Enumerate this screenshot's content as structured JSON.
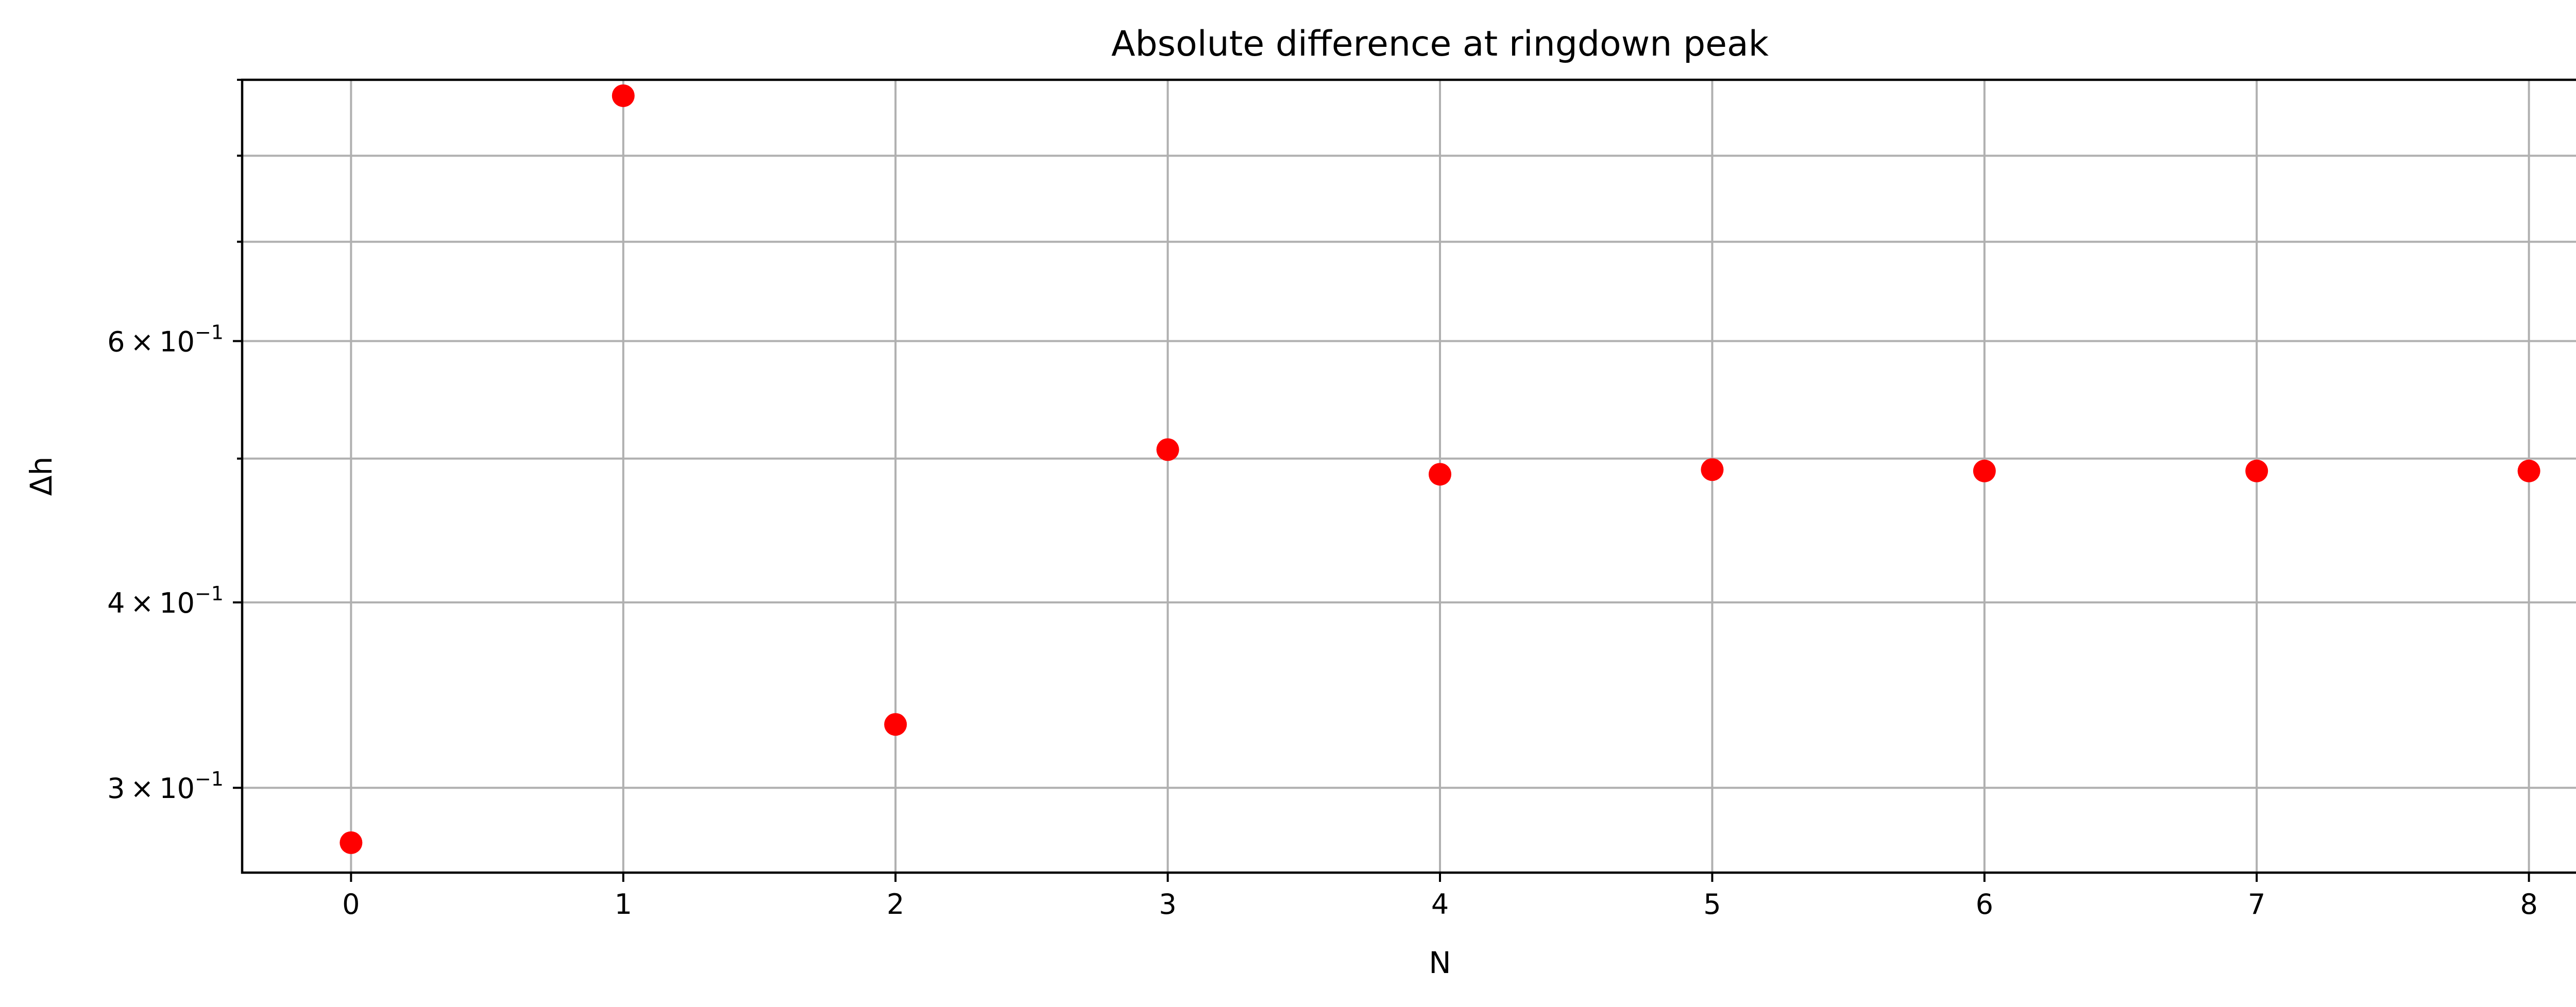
{
  "chart_data": {
    "type": "scatter",
    "title": "Absolute difference at ringdown peak",
    "xlabel": "N",
    "ylabel": "Δh",
    "x": [
      0,
      1,
      2,
      3,
      4,
      5,
      6,
      7,
      8
    ],
    "y": [
      0.2755,
      0.878,
      0.331,
      0.507,
      0.488,
      0.4915,
      0.4905,
      0.4905,
      0.4905
    ],
    "xlim": [
      -0.4,
      8.4
    ],
    "ylim": [
      0.263,
      0.9
    ],
    "yscale": "log",
    "xticks": [
      "0",
      "1",
      "2",
      "3",
      "4",
      "5",
      "6",
      "7",
      "8"
    ],
    "yticks_major": [
      {
        "value": 0.3,
        "mantissa": "3",
        "exponent": "−1"
      },
      {
        "value": 0.4,
        "mantissa": "4",
        "exponent": "−1"
      },
      {
        "value": 0.6,
        "mantissa": "6",
        "exponent": "−1"
      }
    ],
    "yticks_minor": [
      0.5,
      0.7,
      0.8,
      0.9
    ],
    "grid": true,
    "marker_color": "#ff0000"
  }
}
